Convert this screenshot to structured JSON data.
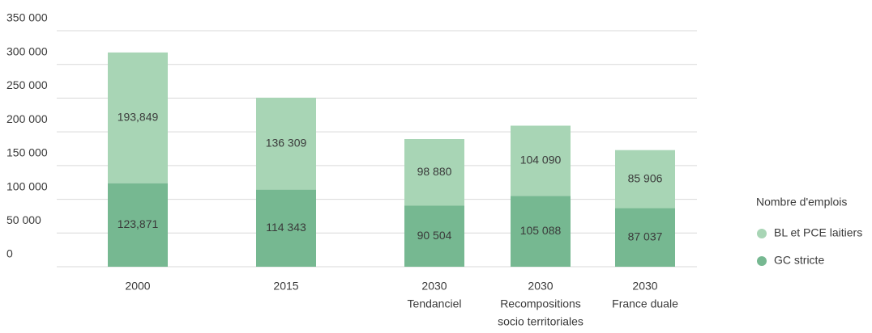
{
  "chart_data": {
    "type": "bar",
    "stacked": true,
    "categories": [
      [
        "2000"
      ],
      [
        "2015"
      ],
      [
        "2030",
        "Tendanciel"
      ],
      [
        "2030",
        "Recompositions",
        "socio territoriales"
      ],
      [
        "2030",
        "France duale"
      ]
    ],
    "legend_title": "Nombre d'emplois",
    "legend": "right",
    "series": [
      {
        "name": "BL et PCE laitiers",
        "color": "#a8d5b5",
        "values": [
          193849,
          136309,
          98880,
          104090,
          85906
        ],
        "value_labels": [
          "193,849",
          "136 309",
          "98 880",
          "104 090",
          "85 906"
        ]
      },
      {
        "name": "GC stricte",
        "color": "#76b891",
        "values": [
          123871,
          114343,
          90504,
          105088,
          87037
        ],
        "value_labels": [
          "123,871",
          "114 343",
          "90 504",
          "105 088",
          "87 037"
        ]
      }
    ],
    "ylim": [
      0,
      350000
    ],
    "yticks": [
      0,
      {
        "value": 50000,
        "label": "50 000"
      },
      {
        "value": 100000,
        "label": "100 000"
      },
      {
        "value": 150000,
        "label": "150 000"
      },
      {
        "value": 200000,
        "label": "200 000"
      },
      {
        "value": 250000,
        "label": "250 000"
      },
      {
        "value": 300000,
        "label": "300 000"
      },
      {
        "value": 350000,
        "label": "350 000"
      }
    ],
    "grid": true
  }
}
